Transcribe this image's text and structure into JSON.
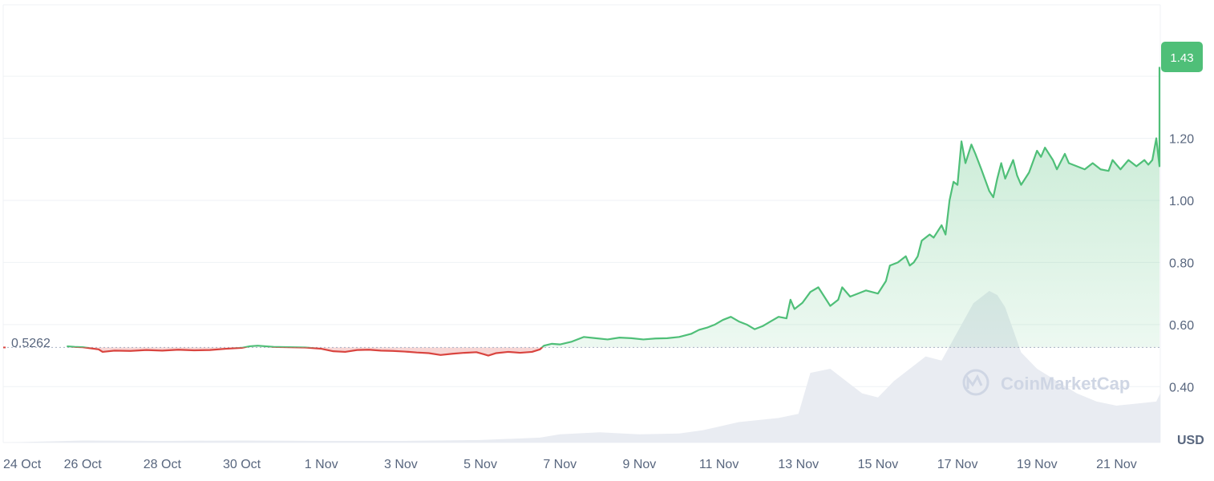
{
  "chart_data": {
    "type": "line",
    "unit_label": "USD",
    "watermark": "CoinMarketCap",
    "current_price_label": "1.43",
    "baseline_label": "0.5262",
    "baseline_value": 0.5262,
    "colors": {
      "up": "#4fbf78",
      "down": "#d9443f",
      "grid": "#eff2f5",
      "volume": "#e9ecf2",
      "badge": "#4fbf78"
    },
    "ylim": [
      0.22,
      1.63
    ],
    "y_ticks": [
      {
        "value": 0.4,
        "label": "0.40"
      },
      {
        "value": 0.6,
        "label": "0.60"
      },
      {
        "value": 0.8,
        "label": "0.80"
      },
      {
        "value": 1.0,
        "label": "1.00"
      },
      {
        "value": 1.2,
        "label": "1.20"
      }
    ],
    "x_domain": [
      0,
      29.1
    ],
    "x_ticks": [
      {
        "value": 0,
        "label": "24 Oct"
      },
      {
        "value": 2,
        "label": "26 Oct"
      },
      {
        "value": 4,
        "label": "28 Oct"
      },
      {
        "value": 6,
        "label": "30 Oct"
      },
      {
        "value": 8,
        "label": "1 Nov"
      },
      {
        "value": 10,
        "label": "3 Nov"
      },
      {
        "value": 12,
        "label": "5 Nov"
      },
      {
        "value": 14,
        "label": "7 Nov"
      },
      {
        "value": 16,
        "label": "9 Nov"
      },
      {
        "value": 18,
        "label": "11 Nov"
      },
      {
        "value": 20,
        "label": "13 Nov"
      },
      {
        "value": 22,
        "label": "15 Nov"
      },
      {
        "value": 24,
        "label": "17 Nov"
      },
      {
        "value": 26,
        "label": "19 Nov"
      },
      {
        "value": 28,
        "label": "21 Nov"
      }
    ],
    "price_series": [
      [
        1.6,
        0.53
      ],
      [
        1.8,
        0.528
      ],
      [
        2.0,
        0.527
      ],
      [
        2.4,
        0.52
      ],
      [
        2.5,
        0.512
      ],
      [
        2.8,
        0.516
      ],
      [
        3.2,
        0.515
      ],
      [
        3.6,
        0.518
      ],
      [
        4.0,
        0.516
      ],
      [
        4.4,
        0.519
      ],
      [
        4.8,
        0.517
      ],
      [
        5.2,
        0.518
      ],
      [
        5.6,
        0.522
      ],
      [
        6.0,
        0.525
      ],
      [
        6.2,
        0.53
      ],
      [
        6.4,
        0.532
      ],
      [
        6.8,
        0.528
      ],
      [
        7.2,
        0.527
      ],
      [
        7.6,
        0.526
      ],
      [
        8.0,
        0.522
      ],
      [
        8.3,
        0.514
      ],
      [
        8.6,
        0.512
      ],
      [
        8.9,
        0.518
      ],
      [
        9.2,
        0.519
      ],
      [
        9.5,
        0.516
      ],
      [
        9.8,
        0.515
      ],
      [
        10.1,
        0.513
      ],
      [
        10.4,
        0.51
      ],
      [
        10.7,
        0.508
      ],
      [
        11.0,
        0.502
      ],
      [
        11.3,
        0.506
      ],
      [
        11.6,
        0.509
      ],
      [
        11.9,
        0.511
      ],
      [
        12.1,
        0.504
      ],
      [
        12.2,
        0.5
      ],
      [
        12.4,
        0.508
      ],
      [
        12.7,
        0.512
      ],
      [
        13.0,
        0.509
      ],
      [
        13.3,
        0.512
      ],
      [
        13.5,
        0.52
      ],
      [
        13.6,
        0.532
      ],
      [
        13.8,
        0.538
      ],
      [
        14.0,
        0.536
      ],
      [
        14.3,
        0.545
      ],
      [
        14.6,
        0.56
      ],
      [
        14.9,
        0.556
      ],
      [
        15.2,
        0.552
      ],
      [
        15.5,
        0.558
      ],
      [
        15.8,
        0.556
      ],
      [
        16.1,
        0.552
      ],
      [
        16.4,
        0.555
      ],
      [
        16.7,
        0.556
      ],
      [
        17.0,
        0.56
      ],
      [
        17.3,
        0.57
      ],
      [
        17.5,
        0.583
      ],
      [
        17.7,
        0.59
      ],
      [
        17.9,
        0.6
      ],
      [
        18.1,
        0.615
      ],
      [
        18.3,
        0.625
      ],
      [
        18.5,
        0.61
      ],
      [
        18.7,
        0.6
      ],
      [
        18.9,
        0.585
      ],
      [
        19.1,
        0.595
      ],
      [
        19.3,
        0.61
      ],
      [
        19.5,
        0.625
      ],
      [
        19.7,
        0.62
      ],
      [
        19.8,
        0.68
      ],
      [
        19.9,
        0.65
      ],
      [
        20.1,
        0.67
      ],
      [
        20.3,
        0.705
      ],
      [
        20.5,
        0.72
      ],
      [
        20.6,
        0.7
      ],
      [
        20.8,
        0.66
      ],
      [
        21.0,
        0.68
      ],
      [
        21.1,
        0.72
      ],
      [
        21.3,
        0.69
      ],
      [
        21.5,
        0.7
      ],
      [
        21.7,
        0.71
      ],
      [
        22.0,
        0.7
      ],
      [
        22.2,
        0.74
      ],
      [
        22.3,
        0.79
      ],
      [
        22.5,
        0.8
      ],
      [
        22.7,
        0.82
      ],
      [
        22.8,
        0.79
      ],
      [
        22.9,
        0.8
      ],
      [
        23.0,
        0.82
      ],
      [
        23.1,
        0.87
      ],
      [
        23.3,
        0.89
      ],
      [
        23.4,
        0.88
      ],
      [
        23.6,
        0.92
      ],
      [
        23.7,
        0.89
      ],
      [
        23.8,
        1.0
      ],
      [
        23.9,
        1.06
      ],
      [
        24.0,
        1.05
      ],
      [
        24.1,
        1.19
      ],
      [
        24.2,
        1.12
      ],
      [
        24.35,
        1.18
      ],
      [
        24.45,
        1.15
      ],
      [
        24.6,
        1.1
      ],
      [
        24.8,
        1.03
      ],
      [
        24.9,
        1.01
      ],
      [
        25.0,
        1.07
      ],
      [
        25.1,
        1.12
      ],
      [
        25.2,
        1.07
      ],
      [
        25.3,
        1.1
      ],
      [
        25.4,
        1.13
      ],
      [
        25.5,
        1.08
      ],
      [
        25.6,
        1.05
      ],
      [
        25.8,
        1.09
      ],
      [
        26.0,
        1.16
      ],
      [
        26.1,
        1.14
      ],
      [
        26.2,
        1.17
      ],
      [
        26.4,
        1.13
      ],
      [
        26.5,
        1.1
      ],
      [
        26.7,
        1.15
      ],
      [
        26.8,
        1.12
      ],
      [
        27.0,
        1.11
      ],
      [
        27.2,
        1.1
      ],
      [
        27.4,
        1.12
      ],
      [
        27.6,
        1.1
      ],
      [
        27.8,
        1.095
      ],
      [
        27.9,
        1.13
      ],
      [
        28.1,
        1.1
      ],
      [
        28.3,
        1.13
      ],
      [
        28.5,
        1.11
      ],
      [
        28.6,
        1.12
      ],
      [
        28.7,
        1.13
      ],
      [
        28.8,
        1.115
      ],
      [
        28.9,
        1.13
      ],
      [
        29.0,
        1.2
      ],
      [
        29.1,
        1.11
      ],
      [
        29.2,
        1.21
      ],
      [
        29.3,
        1.18
      ],
      [
        29.4,
        1.21
      ],
      [
        29.5,
        1.3
      ],
      [
        29.6,
        1.37
      ],
      [
        29.7,
        1.4
      ],
      [
        29.8,
        1.38
      ],
      [
        29.9,
        1.4
      ],
      [
        30.0,
        1.38
      ],
      [
        30.1,
        1.43
      ]
    ],
    "volume_series": [
      [
        0,
        0
      ],
      [
        2,
        0.005
      ],
      [
        4,
        0.004
      ],
      [
        6,
        0.005
      ],
      [
        8,
        0.004
      ],
      [
        10,
        0.004
      ],
      [
        12,
        0.006
      ],
      [
        13.5,
        0.012
      ],
      [
        14,
        0.02
      ],
      [
        15,
        0.025
      ],
      [
        16,
        0.02
      ],
      [
        17,
        0.022
      ],
      [
        17.6,
        0.03
      ],
      [
        18.5,
        0.05
      ],
      [
        19.5,
        0.06
      ],
      [
        20.0,
        0.07
      ],
      [
        20.3,
        0.17
      ],
      [
        20.8,
        0.18
      ],
      [
        21.2,
        0.15
      ],
      [
        21.6,
        0.12
      ],
      [
        22.0,
        0.11
      ],
      [
        22.4,
        0.15
      ],
      [
        22.8,
        0.18
      ],
      [
        23.2,
        0.21
      ],
      [
        23.6,
        0.2
      ],
      [
        24.0,
        0.27
      ],
      [
        24.4,
        0.34
      ],
      [
        24.8,
        0.37
      ],
      [
        25.0,
        0.36
      ],
      [
        25.2,
        0.33
      ],
      [
        25.6,
        0.22
      ],
      [
        26.0,
        0.18
      ],
      [
        26.5,
        0.15
      ],
      [
        27.0,
        0.12
      ],
      [
        27.5,
        0.1
      ],
      [
        28.0,
        0.09
      ],
      [
        28.5,
        0.095
      ],
      [
        29.0,
        0.1
      ],
      [
        29.3,
        0.12
      ],
      [
        29.6,
        0.18
      ],
      [
        29.8,
        0.25
      ],
      [
        30.1,
        0.29
      ]
    ],
    "volume_max": 0.45
  }
}
